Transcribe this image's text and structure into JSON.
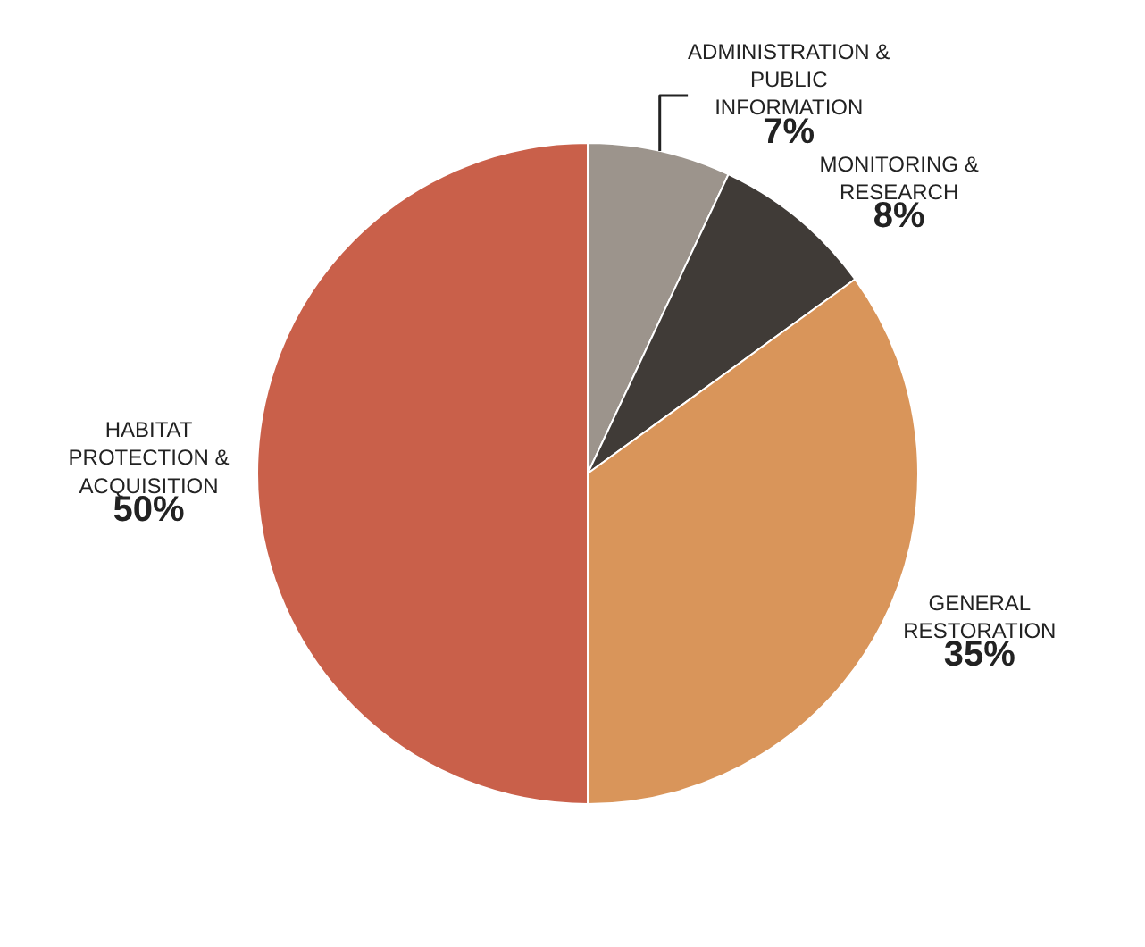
{
  "chart_data": {
    "type": "pie",
    "categories": [
      "ADMINISTRATION & PUBLIC INFORMATION",
      "MONITORING & RESEARCH",
      "GENERAL RESTORATION",
      "HABITAT PROTECTION & ACQUISITION"
    ],
    "values": [
      7,
      8,
      35,
      50
    ],
    "colors": [
      "#9c948c",
      "#403b37",
      "#d9955a",
      "#c9604a"
    ],
    "value_labels": [
      "7%",
      "8%",
      "35%",
      "50%"
    ],
    "legend": false
  }
}
